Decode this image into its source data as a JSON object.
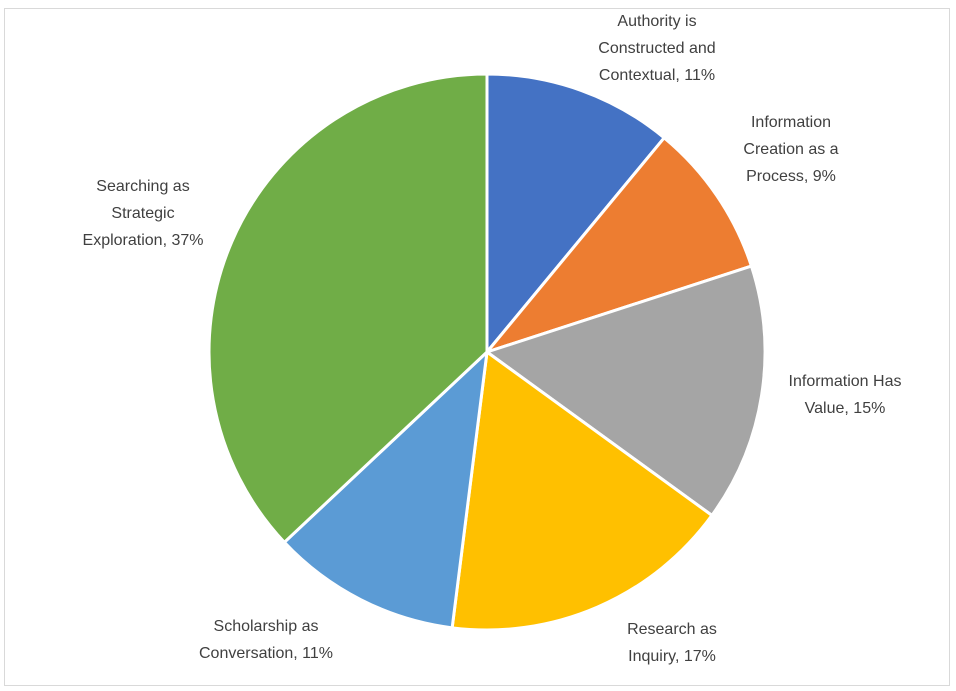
{
  "chart_data": {
    "type": "pie",
    "title": "",
    "legend": "none",
    "start_angle_deg": 0,
    "direction": "clockwise",
    "slices": [
      {
        "label": "Authority is Constructed and Contextual",
        "value": 11,
        "value_label": "11%",
        "color": "#4472C4",
        "label_lines": [
          "Authority is",
          "Constructed and",
          "Contextual, 11%"
        ]
      },
      {
        "label": "Information Creation as a Process",
        "value": 9,
        "value_label": "9%",
        "color": "#ED7D31",
        "label_lines": [
          "Information",
          "Creation as a",
          "Process, 9%"
        ]
      },
      {
        "label": "Information Has Value",
        "value": 15,
        "value_label": "15%",
        "color": "#A5A5A5",
        "label_lines": [
          "Information Has",
          "Value, 15%"
        ]
      },
      {
        "label": "Research as Inquiry",
        "value": 17,
        "value_label": "17%",
        "color": "#FFC000",
        "label_lines": [
          "Research as",
          "Inquiry, 17%"
        ]
      },
      {
        "label": "Scholarship as Conversation",
        "value": 11,
        "value_label": "11%",
        "color": "#5B9BD5",
        "label_lines": [
          "Scholarship as",
          "Conversation, 11%"
        ]
      },
      {
        "label": "Searching as Strategic Exploration",
        "value": 37,
        "value_label": "37%",
        "color": "#70AD47",
        "label_lines": [
          "Searching as",
          "Strategic",
          "Exploration, 37%"
        ]
      }
    ]
  }
}
